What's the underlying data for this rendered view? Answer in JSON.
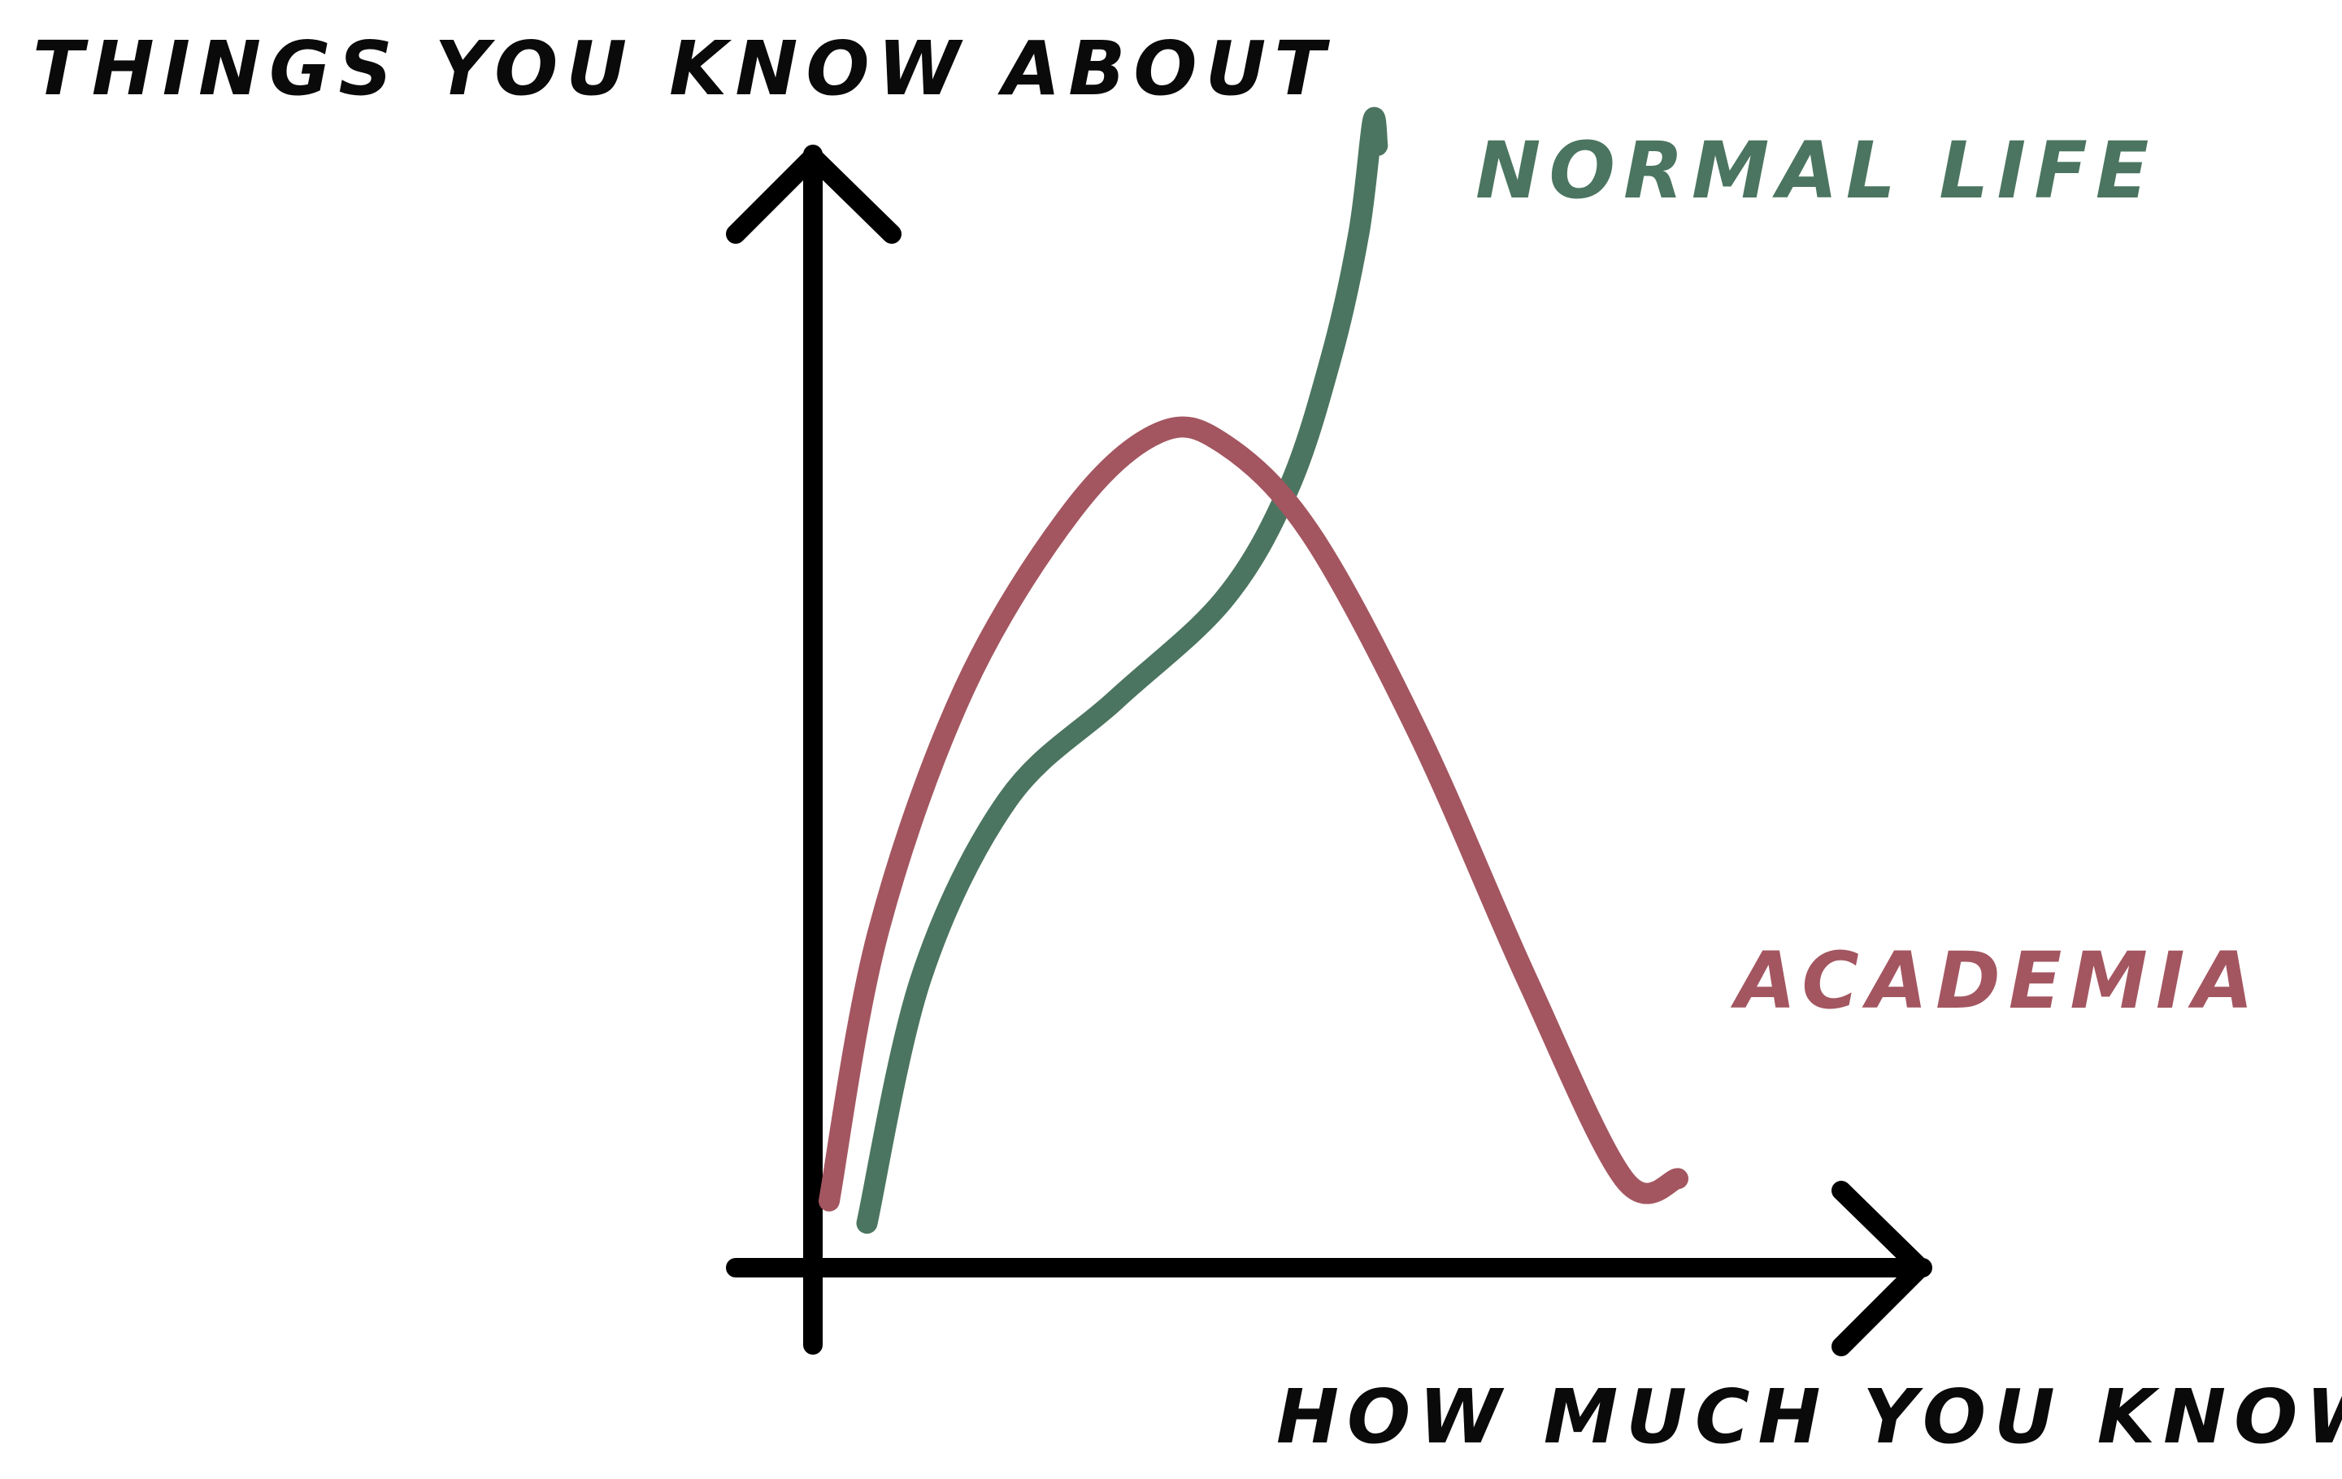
{
  "chart_data": {
    "type": "line",
    "title": "",
    "xlabel": "HOW MUCH YOU KNOW",
    "ylabel": "THINGS YOU KNOW ABOUT",
    "xlim": [
      0,
      100
    ],
    "ylim": [
      0,
      100
    ],
    "grid": false,
    "legend": "inline labels near line ends",
    "axis_color": "#000000",
    "series": [
      {
        "name": "NORMAL LIFE",
        "color": "#4b7560",
        "x": [
          5,
          10,
          18,
          28,
          38,
          44,
          48,
          50.5,
          51.8,
          52.2
        ],
        "y": [
          4,
          26,
          42,
          51,
          60,
          70,
          82,
          93,
          103,
          100.8
        ]
      },
      {
        "name": "ACADEMIA",
        "color": "#a35660",
        "x": [
          1.5,
          6,
          14,
          24,
          32,
          38,
          46,
          56,
          66,
          75,
          80
        ],
        "y": [
          6,
          30,
          52,
          68,
          75,
          74,
          66,
          48,
          26,
          8,
          8
        ]
      }
    ]
  }
}
